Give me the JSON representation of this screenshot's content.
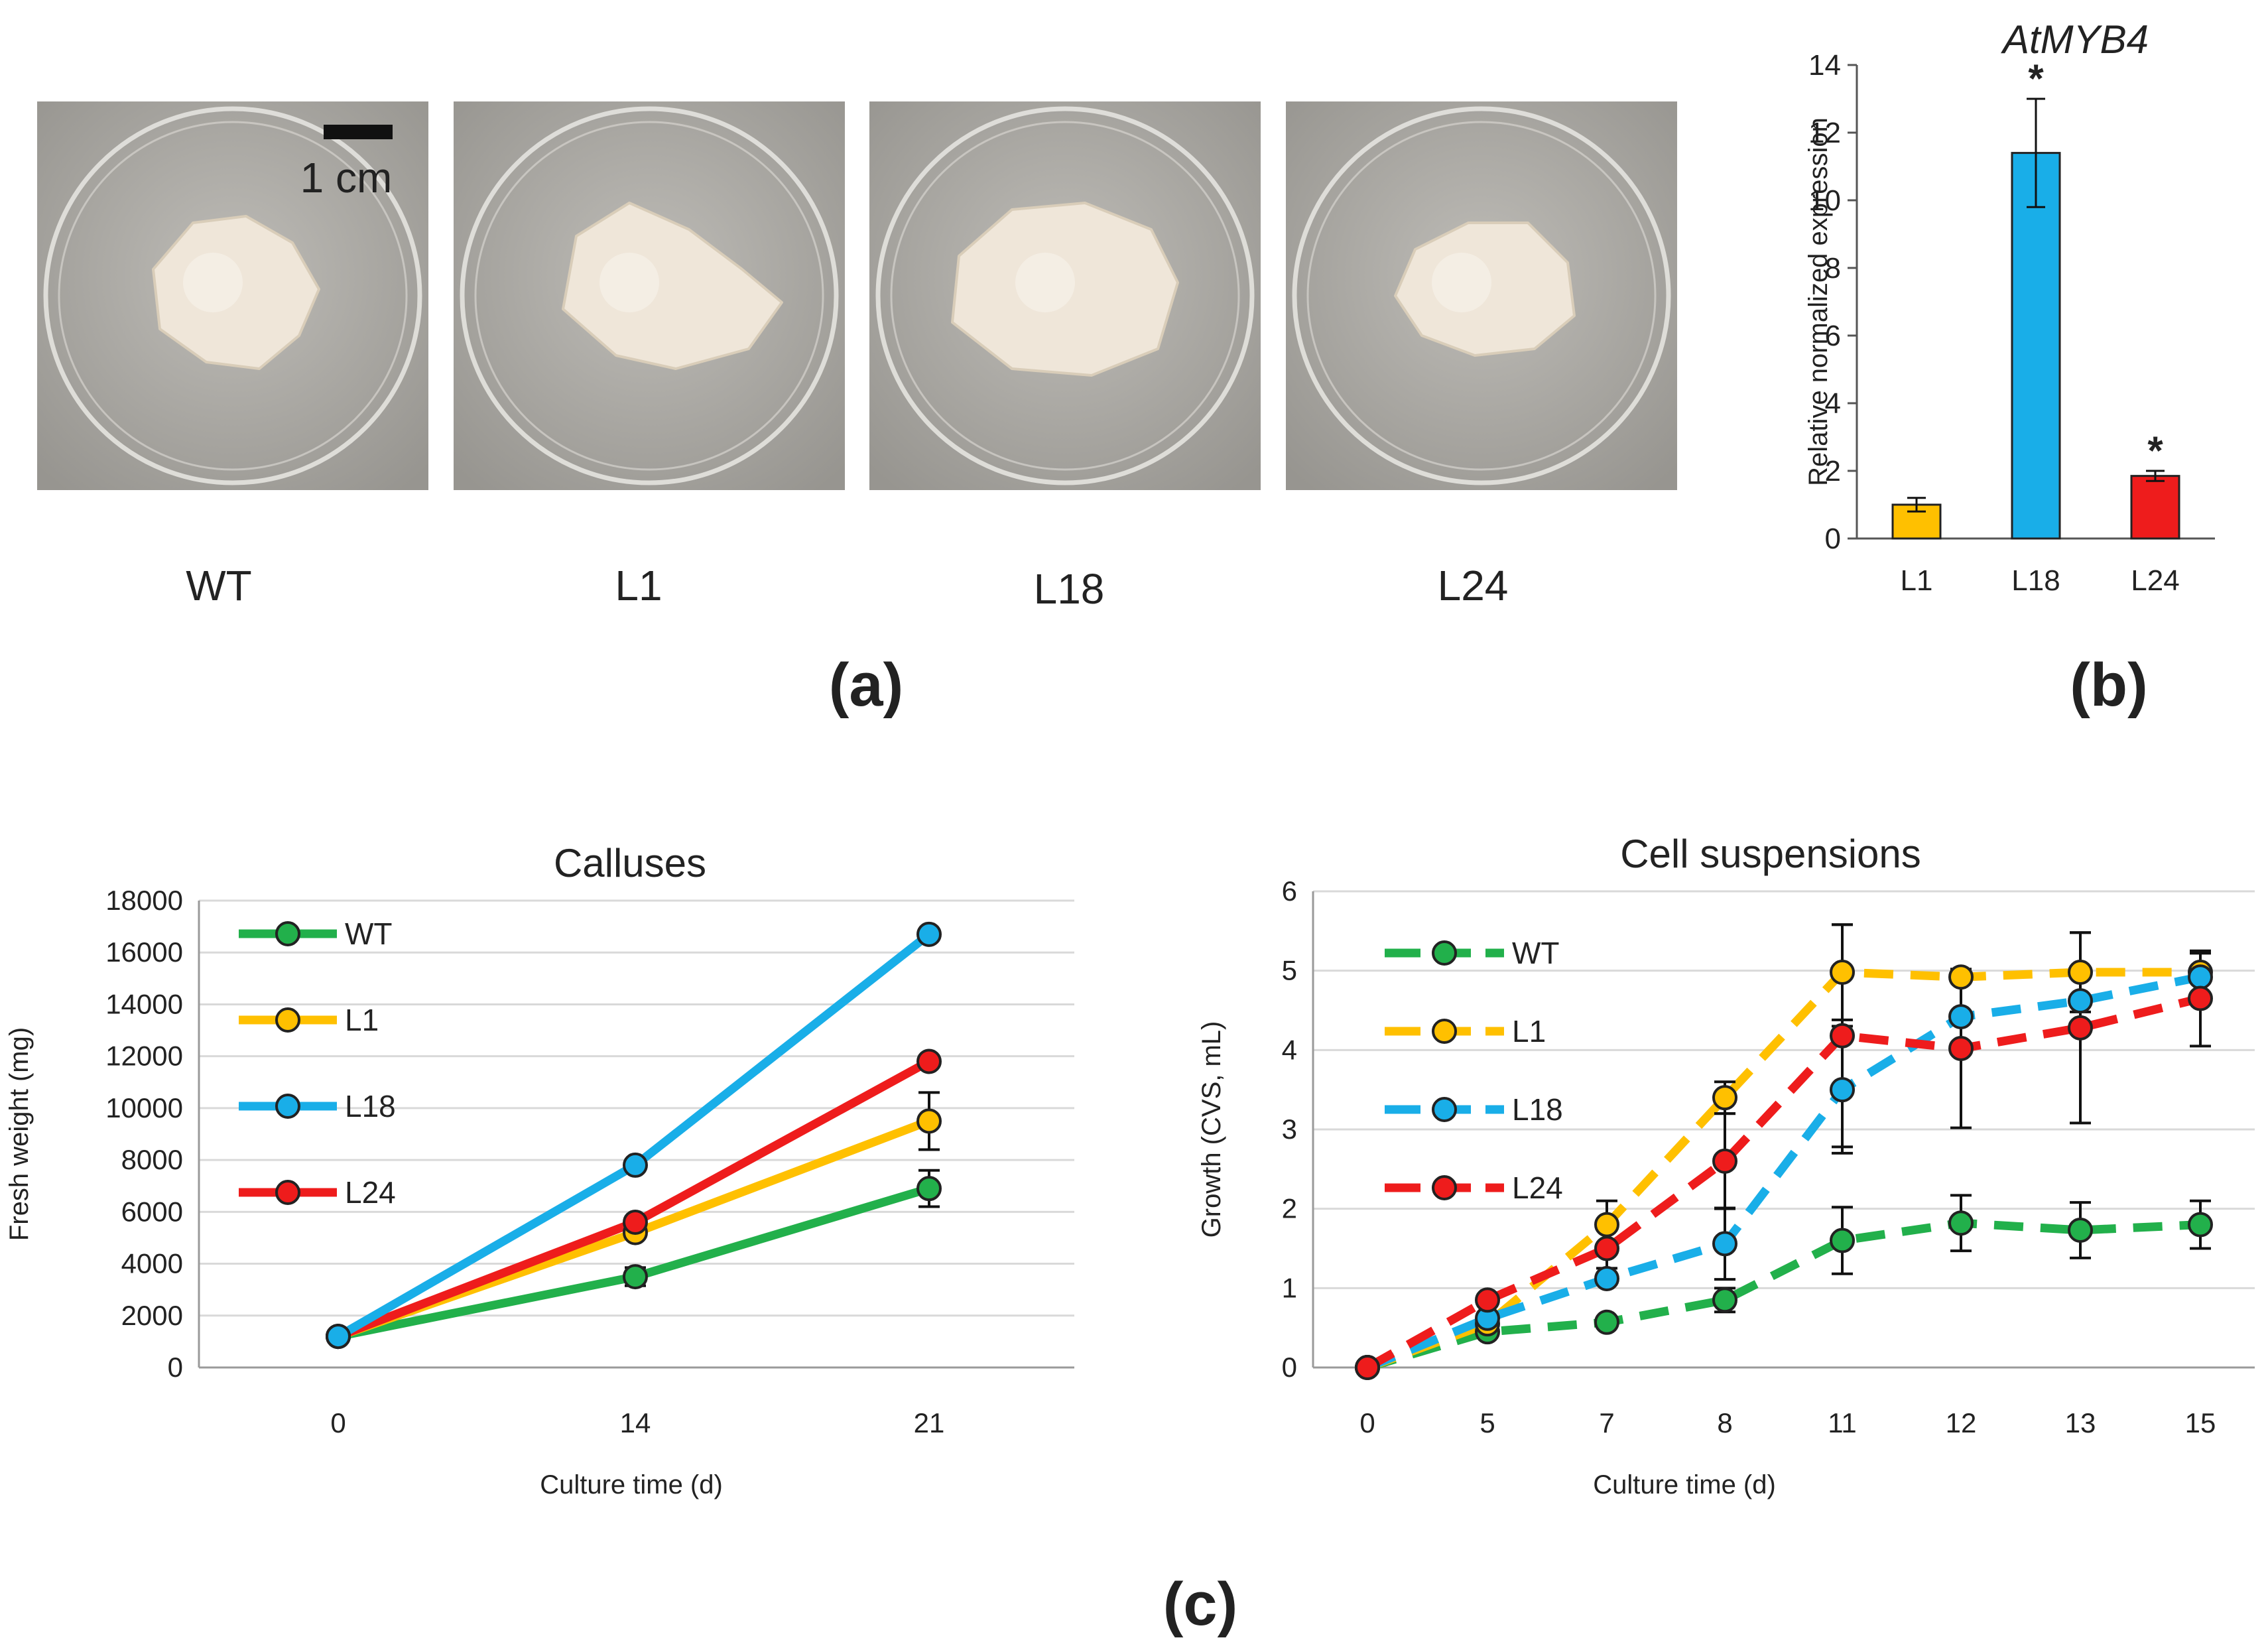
{
  "panels": {
    "a": "(a)",
    "b": "(b)",
    "c": "(c)"
  },
  "photos": {
    "labels": [
      "WT",
      "L1",
      "L18",
      "L24"
    ],
    "scale_bar_label": "1 cm"
  },
  "colors": {
    "WT": "#22b04b",
    "L1": "#ffc000",
    "L18": "#19aee8",
    "L24": "#ee1c1c",
    "dish_bg": "#a8a6a1",
    "callus": "#efe6d9"
  },
  "chart_data": [
    {
      "id": "b",
      "type": "bar",
      "title": "AtMYB4",
      "ylabel": "Relative normalized expression",
      "xlabel": "",
      "categories": [
        "L1",
        "L18",
        "L24"
      ],
      "values": [
        1.0,
        11.4,
        1.85
      ],
      "errors": [
        0.2,
        1.6,
        0.15
      ],
      "significance": [
        "",
        "*",
        "*"
      ],
      "ylim": [
        0,
        14
      ],
      "yticks": [
        0,
        2,
        4,
        6,
        8,
        10,
        12,
        14
      ],
      "grid": false
    },
    {
      "id": "c-left",
      "type": "line",
      "title": "Calluses",
      "xlabel": "Culture time (d)",
      "ylabel": "Fresh weight (mg)",
      "categories": [
        "0",
        "14",
        "21"
      ],
      "ylim": [
        0,
        18000
      ],
      "yticks": [
        0,
        2000,
        4000,
        6000,
        8000,
        10000,
        12000,
        14000,
        16000,
        18000
      ],
      "grid": true,
      "legend": "top-left",
      "line_style": "solid",
      "series": [
        {
          "name": "WT",
          "values": [
            1200,
            3500,
            6900
          ],
          "errors": [
            0,
            350,
            700
          ]
        },
        {
          "name": "L1",
          "values": [
            1200,
            5200,
            9500
          ],
          "errors": [
            0,
            0,
            1100
          ]
        },
        {
          "name": "L18",
          "values": [
            1200,
            7800,
            16700
          ],
          "errors": [
            0,
            0,
            0
          ]
        },
        {
          "name": "L24",
          "values": [
            1200,
            5600,
            11800
          ],
          "errors": [
            0,
            0,
            0
          ]
        }
      ]
    },
    {
      "id": "c-right",
      "type": "line",
      "title": "Cell suspensions",
      "xlabel": "Culture time (d)",
      "ylabel": "Growth (CVS, mL)",
      "categories": [
        "0",
        "5",
        "7",
        "8",
        "11",
        "12",
        "13",
        "15"
      ],
      "ylim": [
        0,
        6
      ],
      "yticks": [
        0,
        1,
        2,
        3,
        4,
        5,
        6
      ],
      "grid": true,
      "legend": "top-left",
      "line_style": "dashed",
      "series": [
        {
          "name": "WT",
          "values": [
            0,
            0.45,
            0.57,
            0.85,
            1.6,
            1.82,
            1.73,
            1.8
          ],
          "errors": [
            0,
            0,
            0,
            0.15,
            0.42,
            0.35,
            0.35,
            0.3
          ]
        },
        {
          "name": "L1",
          "values": [
            0,
            0.55,
            1.8,
            3.4,
            4.98,
            4.92,
            4.98,
            4.98
          ],
          "errors": [
            0,
            0,
            0.3,
            0.2,
            0.6,
            0,
            0.5,
            0
          ]
        },
        {
          "name": "L18",
          "values": [
            0,
            0.62,
            1.12,
            1.56,
            3.5,
            4.42,
            4.62,
            4.92
          ],
          "errors": [
            0,
            0,
            0,
            0.45,
            0.8,
            0,
            0,
            0.3
          ]
        },
        {
          "name": "L24",
          "values": [
            0,
            0.85,
            1.5,
            2.6,
            4.18,
            4.02,
            4.28,
            4.65
          ],
          "errors": [
            0,
            0,
            0.25,
            0.6,
            1.4,
            1.0,
            1.2,
            0.6
          ]
        }
      ]
    }
  ]
}
